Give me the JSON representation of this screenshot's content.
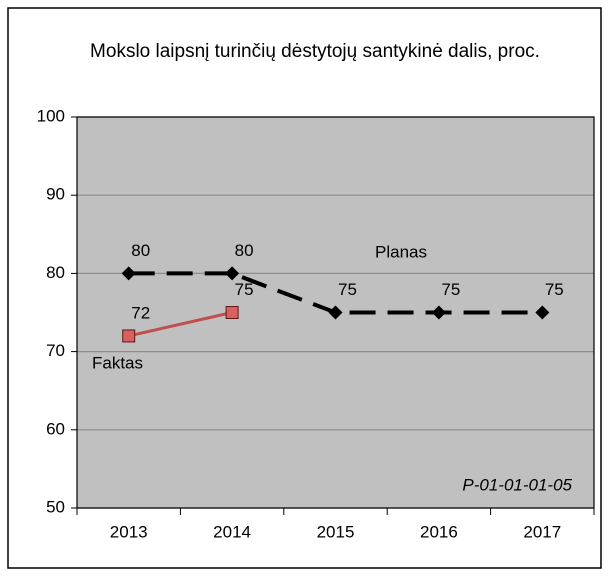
{
  "chart_data": {
    "type": "line",
    "title": "Mokslo laipsnį turinčių dėstytojų santykinė dalis, proc.",
    "categories": [
      "2013",
      "2014",
      "2015",
      "2016",
      "2017"
    ],
    "series": [
      {
        "name": "Planas",
        "color": "#000000",
        "values": [
          80,
          80,
          75,
          75,
          75
        ]
      },
      {
        "name": "Faktas",
        "color": "#c0504d",
        "values": [
          72,
          75,
          null,
          null,
          null
        ]
      }
    ],
    "ylim": [
      50,
      100
    ],
    "yticks": [
      50,
      60,
      70,
      80,
      90,
      100
    ],
    "grid": true,
    "annotation": "P-01-01-01-05"
  }
}
